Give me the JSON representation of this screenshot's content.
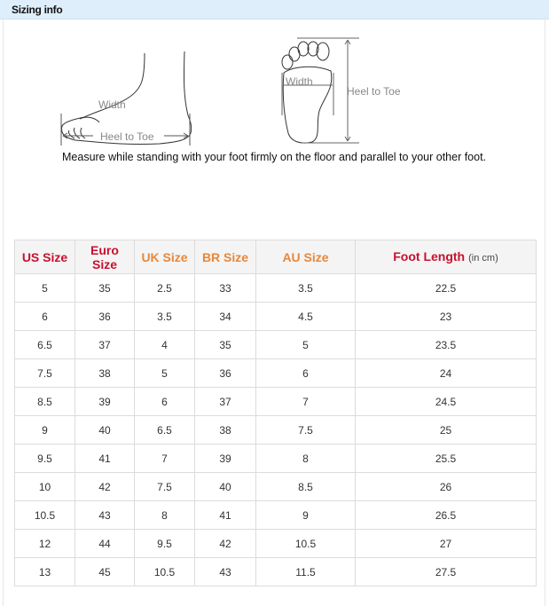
{
  "header": {
    "title": "Sizing info"
  },
  "diagram": {
    "width_label": "Width",
    "heel_to_toe_label": "Heel to Toe",
    "note": "Measure while standing with your foot firmly on the floor and parallel to your other foot."
  },
  "colors": {
    "header_bg": "#deeefa",
    "heading_red": "#c8102e",
    "heading_orange": "#e8873a"
  },
  "table": {
    "headers": [
      {
        "label": "US Size",
        "color": "red"
      },
      {
        "label": "Euro Size",
        "color": "red"
      },
      {
        "label": "UK Size",
        "color": "orange"
      },
      {
        "label": "BR Size",
        "color": "orange"
      },
      {
        "label": "AU Size",
        "color": "orange"
      },
      {
        "label": "Foot Length",
        "unit": "(in cm)",
        "color": "red"
      }
    ],
    "rows": [
      [
        "5",
        "35",
        "2.5",
        "33",
        "3.5",
        "22.5"
      ],
      [
        "6",
        "36",
        "3.5",
        "34",
        "4.5",
        "23"
      ],
      [
        "6.5",
        "37",
        "4",
        "35",
        "5",
        "23.5"
      ],
      [
        "7.5",
        "38",
        "5",
        "36",
        "6",
        "24"
      ],
      [
        "8.5",
        "39",
        "6",
        "37",
        "7",
        "24.5"
      ],
      [
        "9",
        "40",
        "6.5",
        "38",
        "7.5",
        "25"
      ],
      [
        "9.5",
        "41",
        "7",
        "39",
        "8",
        "25.5"
      ],
      [
        "10",
        "42",
        "7.5",
        "40",
        "8.5",
        "26"
      ],
      [
        "10.5",
        "43",
        "8",
        "41",
        "9",
        "26.5"
      ],
      [
        "12",
        "44",
        "9.5",
        "42",
        "10.5",
        "27"
      ],
      [
        "13",
        "45",
        "10.5",
        "43",
        "11.5",
        "27.5"
      ]
    ]
  }
}
